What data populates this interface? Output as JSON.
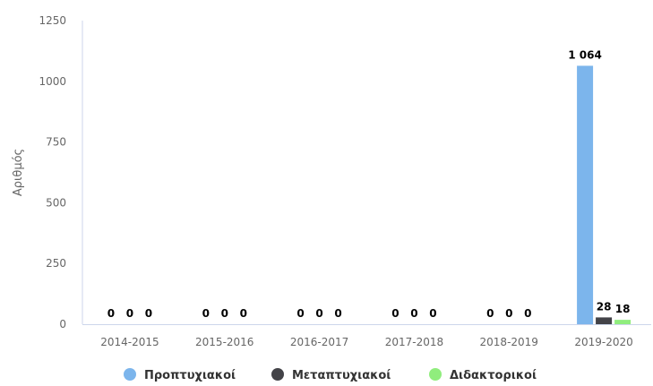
{
  "chart_data": {
    "type": "bar",
    "ylabel": "Αριθμός",
    "xlabel": "",
    "ylim": [
      0,
      1250
    ],
    "yticks": [
      0,
      250,
      500,
      750,
      1000,
      1250
    ],
    "ytick_labels": [
      "0",
      "250",
      "500",
      "750",
      "1000",
      "1250"
    ],
    "grid": false,
    "legend_position": "bottom-center",
    "categories": [
      "2014-2015",
      "2015-2016",
      "2016-2017",
      "2017-2018",
      "2018-2019",
      "2019-2020"
    ],
    "series": [
      {
        "name": "Προπτυχιακοί",
        "color": "#7cb5ec",
        "values": [
          0,
          0,
          0,
          0,
          0,
          1064
        ],
        "labels": [
          "0",
          "0",
          "0",
          "0",
          "0",
          "1 064"
        ]
      },
      {
        "name": "Μεταπτυχιακοί",
        "color": "#434348",
        "values": [
          0,
          0,
          0,
          0,
          0,
          28
        ],
        "labels": [
          "0",
          "0",
          "0",
          "0",
          "0",
          "28"
        ]
      },
      {
        "name": "Διδακτορικοί",
        "color": "#90ed7d",
        "values": [
          0,
          0,
          0,
          0,
          0,
          18
        ],
        "labels": [
          "0",
          "0",
          "0",
          "0",
          "0",
          "18"
        ]
      }
    ]
  }
}
